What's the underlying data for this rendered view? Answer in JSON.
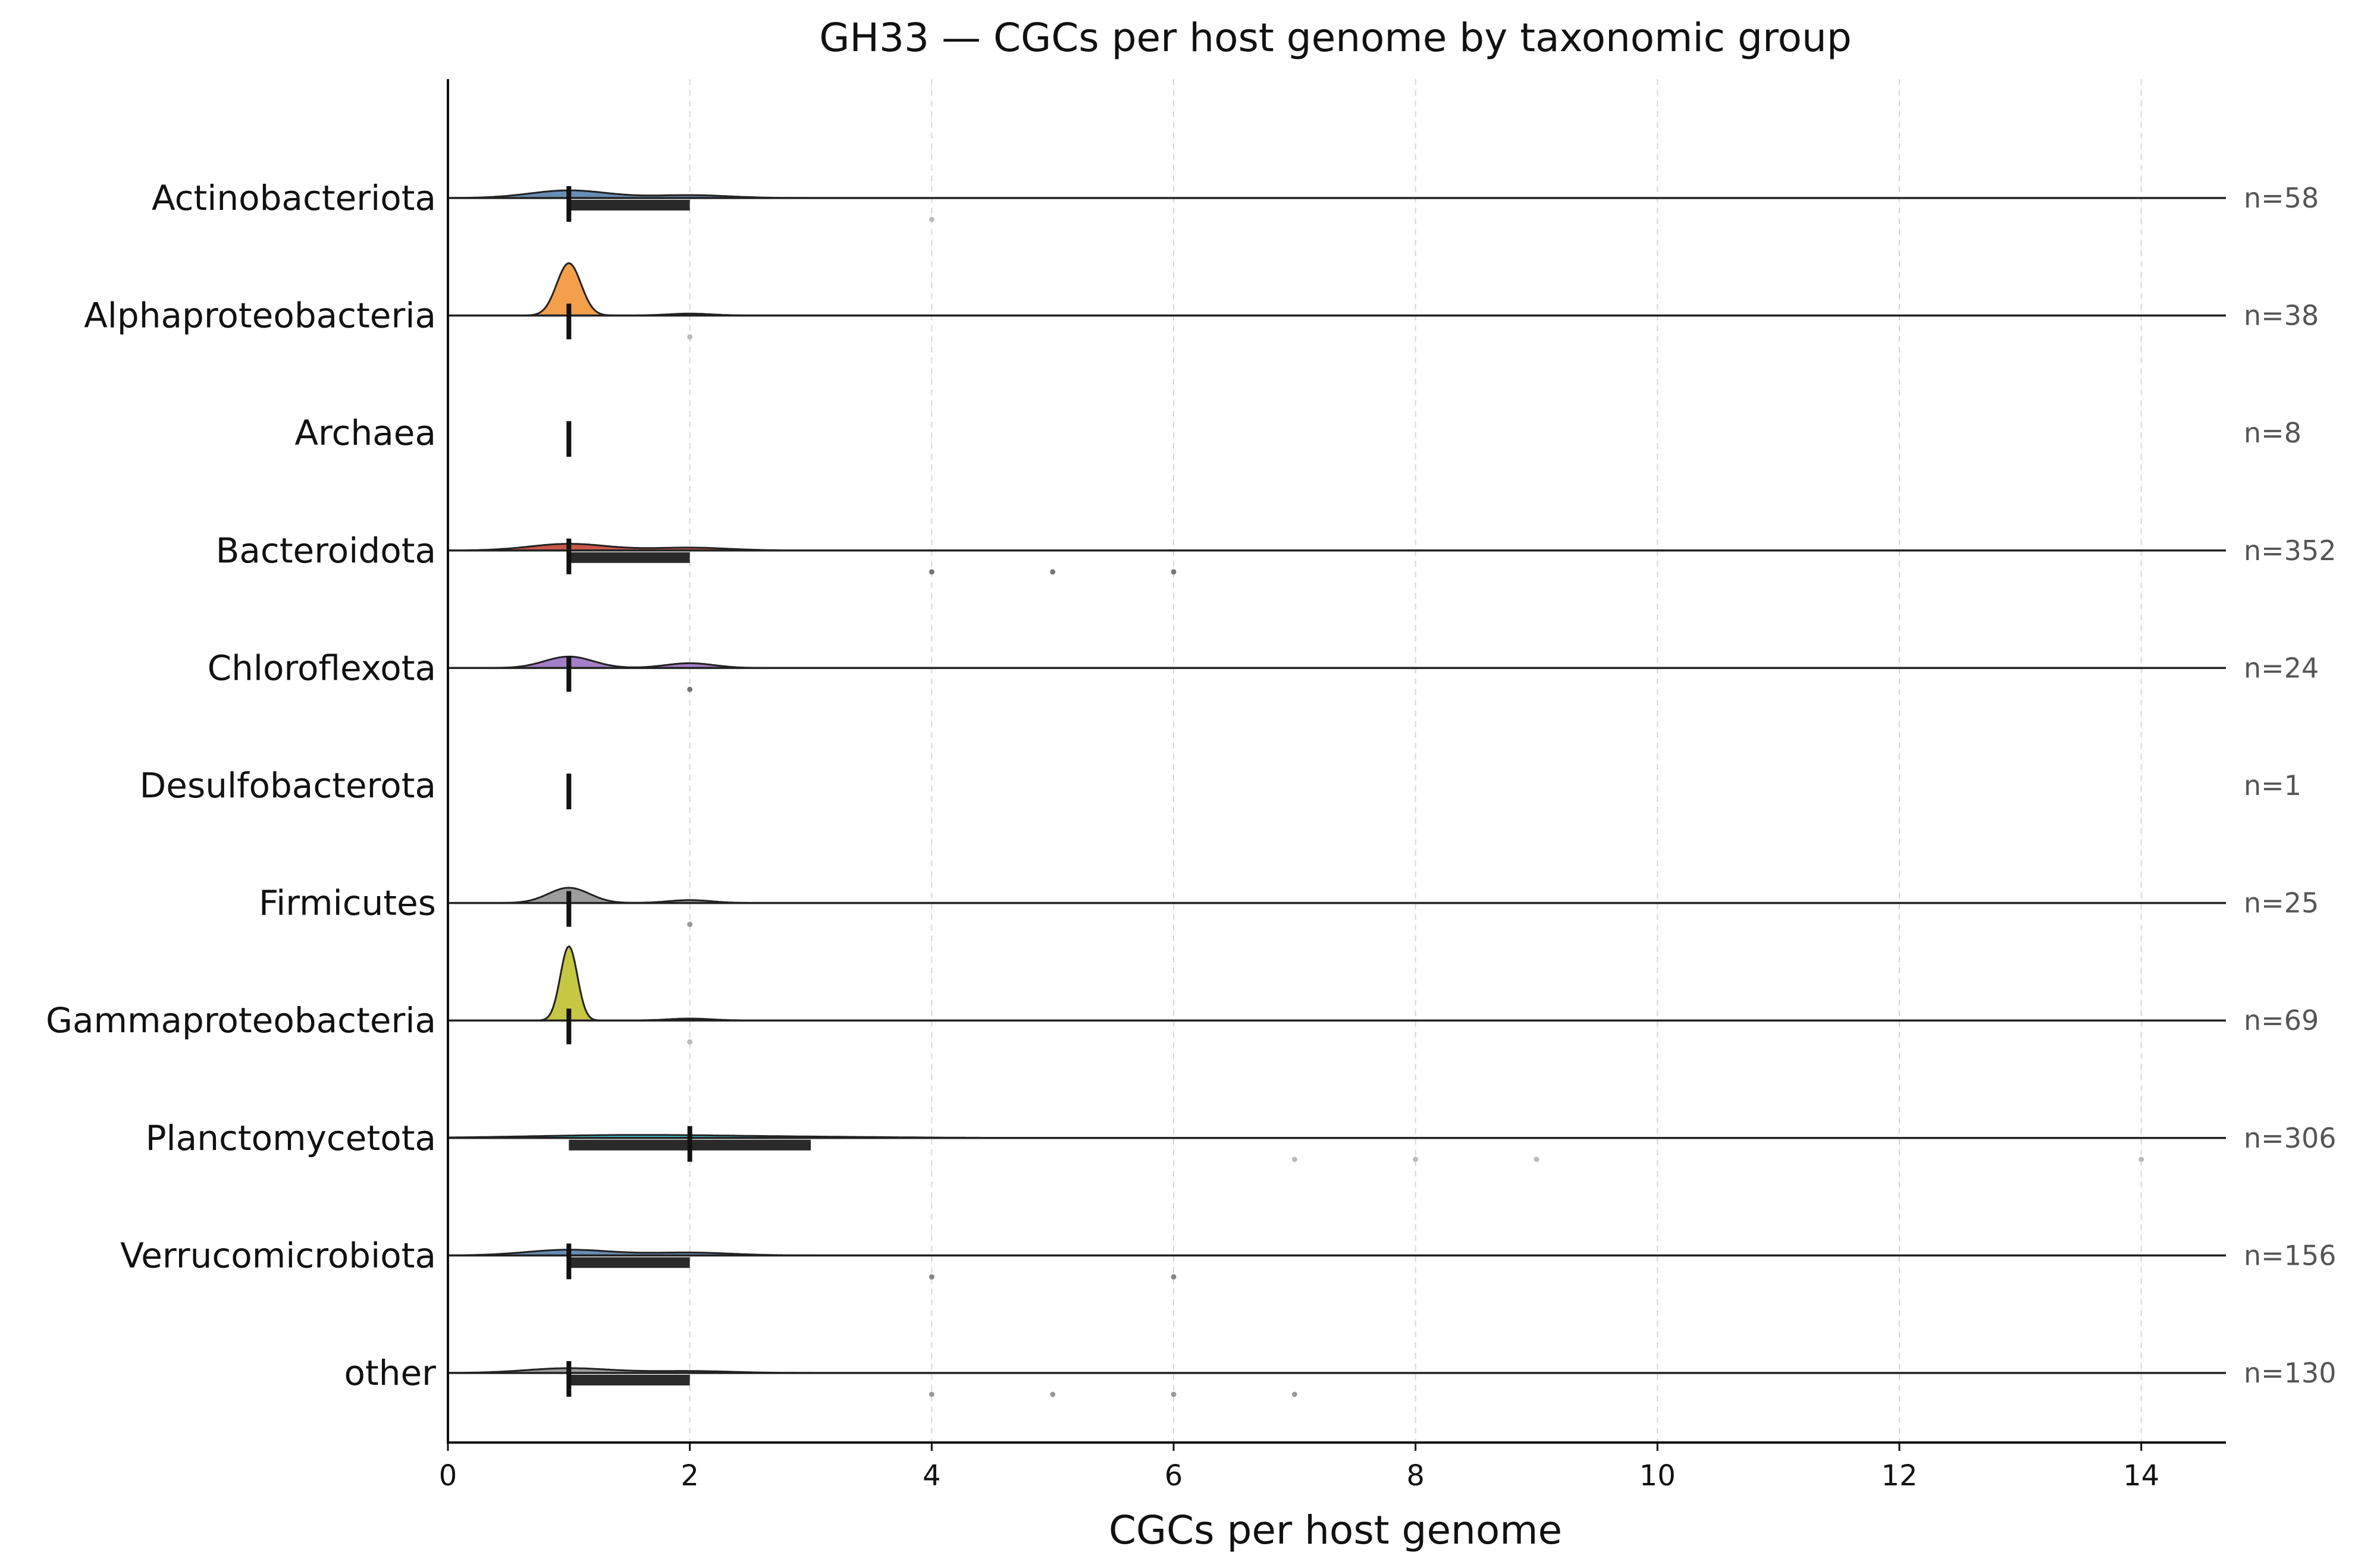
{
  "chart_data": {
    "type": "ridgeline",
    "title": "GH33 — CGCs per host genome by taxonomic group",
    "xlabel": "CGCs per host genome",
    "ylabel": "",
    "xlim": [
      0,
      14.7
    ],
    "xticks": [
      0,
      2,
      4,
      6,
      8,
      10,
      12,
      14
    ],
    "grid": "vertical dashed",
    "groups": [
      {
        "name": "Actinobacteriota",
        "n_label": "n=58",
        "color": "#4e79a7",
        "median": 1,
        "q1": 1,
        "q3": 2,
        "peak_x": 1,
        "peak_h": 0.08,
        "spread": 0.32,
        "second_peak_x": 2,
        "second_peak_h": 0.03,
        "outliers": [
          4
        ],
        "outlier_shade": "#bbbbbb"
      },
      {
        "name": "Alphaproteobacteria",
        "n_label": "n=38",
        "color": "#f28e2b",
        "median": 1,
        "q1": 1,
        "q3": 1,
        "peak_x": 1,
        "peak_h": 0.55,
        "spread": 0.1,
        "second_peak_x": 2,
        "second_peak_h": 0.02,
        "outliers": [
          2
        ],
        "outlier_shade": "#bbbbbb"
      },
      {
        "name": "Archaea",
        "n_label": "n=8",
        "color": "#59a14f",
        "median": 1,
        "q1": 1,
        "q3": 1,
        "peak_x": 1,
        "peak_h": 0,
        "spread": 0.1,
        "second_peak_x": 2,
        "second_peak_h": 0,
        "outliers": [],
        "outlier_shade": "#bbbbbb"
      },
      {
        "name": "Bacteroidota",
        "n_label": "n=352",
        "color": "#c0392b",
        "median": 1,
        "q1": 1,
        "q3": 2,
        "peak_x": 1,
        "peak_h": 0.07,
        "spread": 0.32,
        "second_peak_x": 2,
        "second_peak_h": 0.03,
        "outliers": [
          4,
          5,
          6
        ],
        "outlier_shade": "#777777"
      },
      {
        "name": "Chloroflexota",
        "n_label": "n=24",
        "color": "#9467bd",
        "median": 1,
        "q1": 1,
        "q3": 1,
        "peak_x": 1,
        "peak_h": 0.12,
        "spread": 0.2,
        "second_peak_x": 2,
        "second_peak_h": 0.05,
        "outliers": [
          2
        ],
        "outlier_shade": "#777777"
      },
      {
        "name": "Desulfobacterota",
        "n_label": "n=1",
        "color": "#8c564b",
        "median": 1,
        "q1": 1,
        "q3": 1,
        "peak_x": 1,
        "peak_h": 0,
        "spread": 0.1,
        "second_peak_x": 2,
        "second_peak_h": 0,
        "outliers": [],
        "outlier_shade": "#bbbbbb"
      },
      {
        "name": "Firmicutes",
        "n_label": "n=25",
        "color": "#8c8c8c",
        "median": 1,
        "q1": 1,
        "q3": 1,
        "peak_x": 1,
        "peak_h": 0.16,
        "spread": 0.17,
        "second_peak_x": 2,
        "second_peak_h": 0.03,
        "outliers": [
          2
        ],
        "outlier_shade": "#999999"
      },
      {
        "name": "Gammaproteobacteria",
        "n_label": "n=69",
        "color": "#bcbd22",
        "median": 1,
        "q1": 1,
        "q3": 1,
        "peak_x": 1,
        "peak_h": 0.78,
        "spread": 0.07,
        "second_peak_x": 2,
        "second_peak_h": 0.02,
        "outliers": [
          2
        ],
        "outlier_shade": "#bbbbbb"
      },
      {
        "name": "Planctomycetota",
        "n_label": "n=306",
        "color": "#17becf",
        "median": 2,
        "q1": 1,
        "q3": 3,
        "peak_x": 1.5,
        "peak_h": 0.03,
        "spread": 0.8,
        "second_peak_x": 3,
        "second_peak_h": 0.01,
        "outliers": [
          7,
          8,
          9,
          14
        ],
        "outlier_shade": "#bbbbbb"
      },
      {
        "name": "Verrucomicrobiota",
        "n_label": "n=156",
        "color": "#4e79a7",
        "median": 1,
        "q1": 1,
        "q3": 2,
        "peak_x": 1,
        "peak_h": 0.06,
        "spread": 0.35,
        "second_peak_x": 2,
        "second_peak_h": 0.03,
        "outliers": [
          4,
          6
        ],
        "outlier_shade": "#888888"
      },
      {
        "name": "other",
        "n_label": "n=130",
        "color": "#8c8c8c",
        "median": 1,
        "q1": 1,
        "q3": 2,
        "peak_x": 1,
        "peak_h": 0.05,
        "spread": 0.35,
        "second_peak_x": 2,
        "second_peak_h": 0.02,
        "outliers": [
          4,
          5,
          6,
          7
        ],
        "outlier_shade": "#999999"
      }
    ]
  }
}
